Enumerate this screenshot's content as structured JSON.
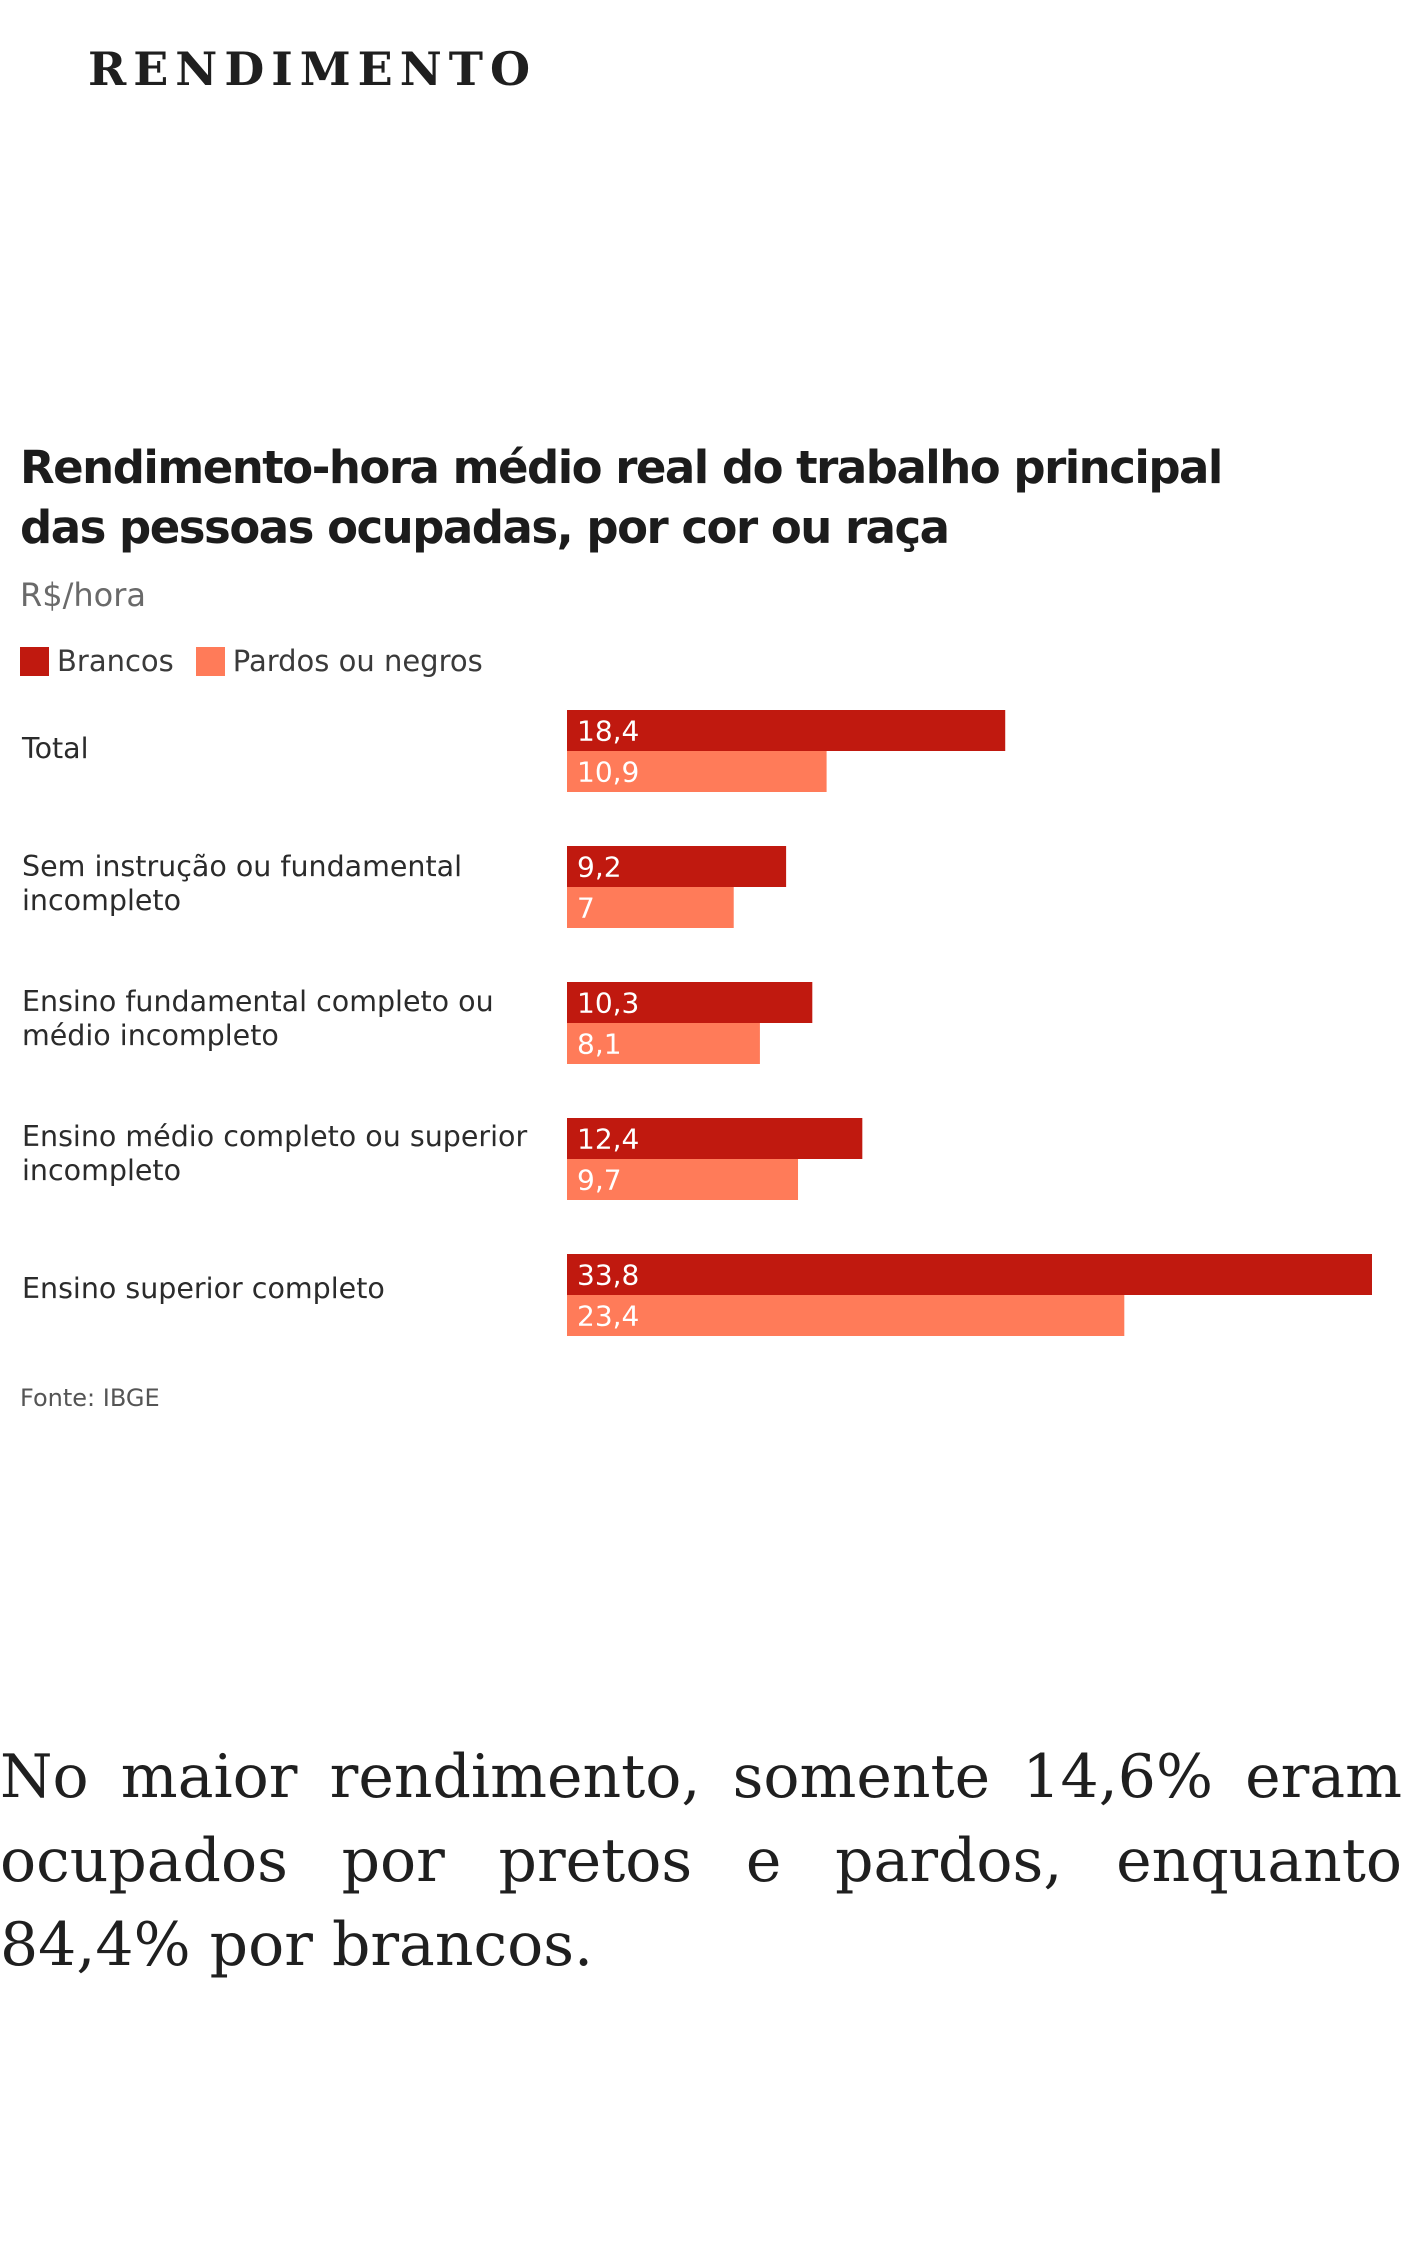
{
  "header": {
    "title": "RENDIMENTO"
  },
  "chart_data": {
    "type": "bar",
    "orientation": "horizontal",
    "title": "Rendimento-hora médio real do trabalho principal das pessoas ocupadas, por cor ou raça",
    "unit": "R$/hora",
    "categories": [
      "Total",
      "Sem instrução ou fundamental incompleto",
      "Ensino fundamental completo ou médio incompleto",
      "Ensino médio completo ou superior incompleto",
      "Ensino superior completo"
    ],
    "series": [
      {
        "name": "Brancos",
        "color": "#c0190f",
        "values": [
          18.4,
          9.2,
          10.3,
          12.4,
          33.8
        ],
        "labels": [
          "18,4",
          "9,2",
          "10,3",
          "12,4",
          "33,8"
        ]
      },
      {
        "name": "Pardos ou negros",
        "color": "#ff7b59",
        "values": [
          10.9,
          7,
          8.1,
          9.7,
          23.4
        ],
        "labels": [
          "10,9",
          "7",
          "8,1",
          "9,7",
          "23,4"
        ]
      }
    ],
    "xlim": [
      0,
      33.8
    ],
    "grid": false,
    "legend_position": "top-left",
    "source": "Fonte: IBGE"
  },
  "caption": {
    "text": "No maior rendimento, somente 14,6% eram ocupados por pretos e pardos, enquanto 84,4% por brancos."
  }
}
